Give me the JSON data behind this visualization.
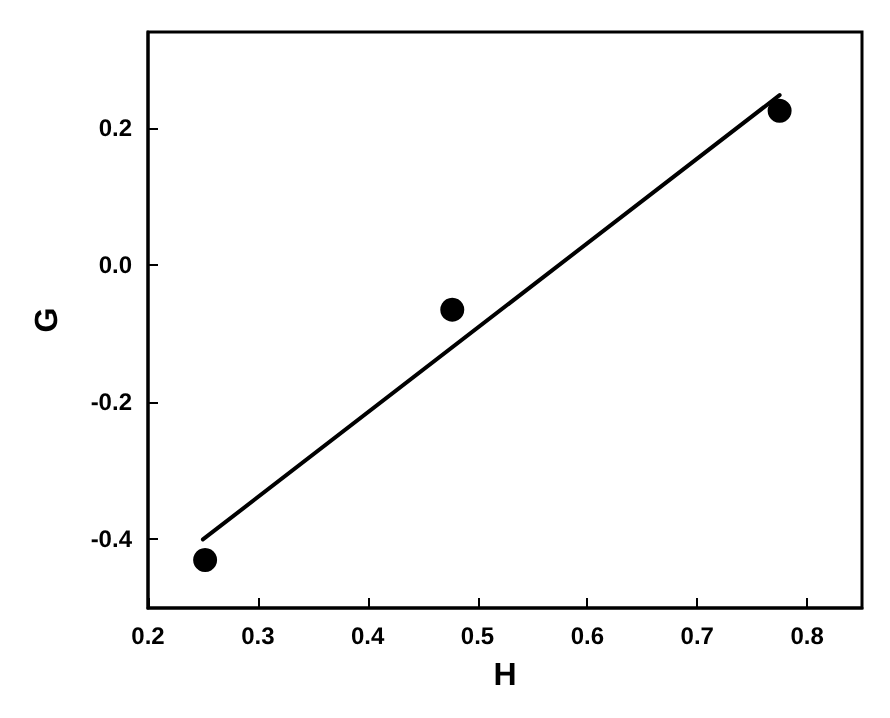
{
  "chart_data": {
    "type": "scatter",
    "xlabel": "H",
    "ylabel": "G",
    "x": [
      0.252,
      0.477,
      0.775
    ],
    "series": [
      {
        "color": "#000000",
        "values": [
          -0.43,
          -0.065,
          0.225
        ],
        "marker": "circle"
      },
      {
        "type": "line",
        "color": "#000000",
        "x": [
          0.25,
          0.775
        ],
        "values": [
          -0.4,
          0.248
        ],
        "marker": "none",
        "line_style": "solid"
      }
    ],
    "xlim": [
      0.2,
      0.85
    ],
    "xticks": [
      0.2,
      0.3,
      0.4,
      0.5,
      0.6,
      0.7,
      0.8
    ],
    "ylim": [
      -0.5,
      0.34
    ],
    "yticks": [
      {
        "value": -0.4,
        "label": "-0.4"
      },
      {
        "value": -0.2,
        "label": "-0.2"
      },
      {
        "value": 0,
        "label": "0.0"
      },
      {
        "value": 0.2,
        "label": "0.2"
      }
    ],
    "grid": false
  }
}
